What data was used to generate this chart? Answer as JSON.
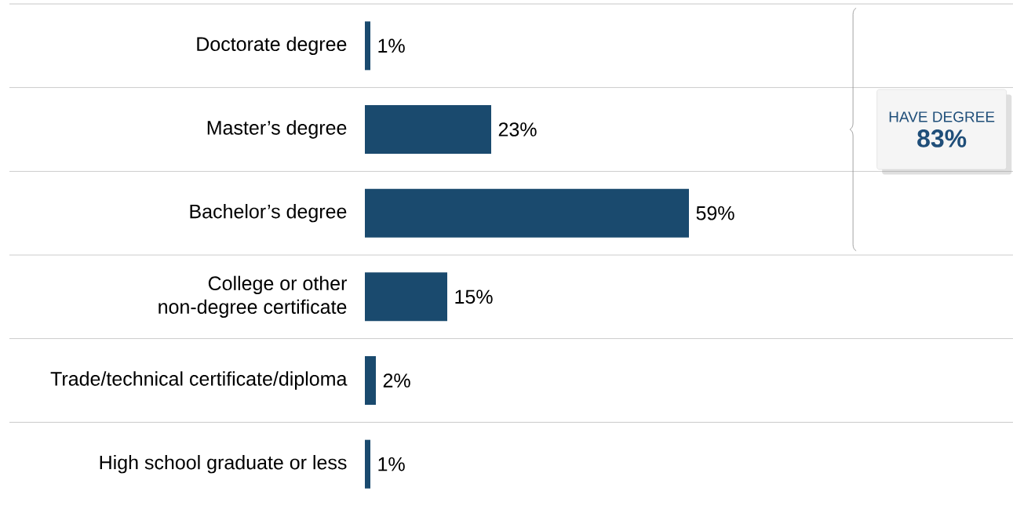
{
  "chart_data": {
    "type": "bar",
    "orientation": "horizontal",
    "categories": [
      "Doctorate degree",
      "Master’s degree",
      "Bachelor’s degree",
      "College or other non-degree certificate",
      "Trade/technical certificate/diploma",
      "High school graduate or less"
    ],
    "values": [
      1,
      23,
      59,
      15,
      2,
      1
    ],
    "value_labels": [
      "1%",
      "23%",
      "59%",
      "15%",
      "2%",
      "1%"
    ],
    "color": "#1a4a6e",
    "grid": "y",
    "annotations": [
      "HAVE DEGREE",
      "83%"
    ]
  }
}
